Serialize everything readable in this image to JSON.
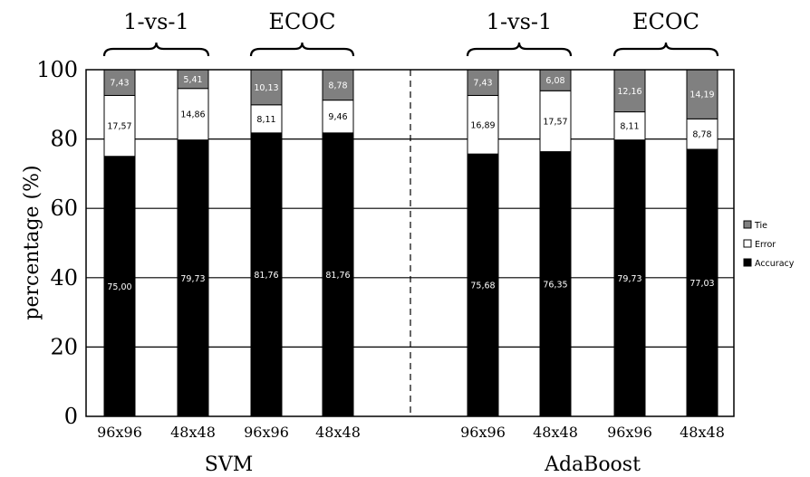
{
  "chart_data": {
    "type": "bar",
    "stacked": true,
    "ylabel": "percentage (%)",
    "ylim": [
      0,
      100
    ],
    "yticks": [
      "0",
      "20",
      "40",
      "60",
      "80",
      "100"
    ],
    "grid": true,
    "legend_position": "right",
    "categories": [
      "96x96",
      "48x48",
      "96x96",
      "48x48",
      "96x96",
      "48x48",
      "96x96",
      "48x48"
    ],
    "groups": [
      {
        "label": "SVM",
        "subgroups": [
          {
            "label": "1-vs-1",
            "bars": [
              0,
              1
            ]
          },
          {
            "label": "ECOC",
            "bars": [
              2,
              3
            ]
          }
        ]
      },
      {
        "label": "AdaBoost",
        "subgroups": [
          {
            "label": "1-vs-1",
            "bars": [
              4,
              5
            ]
          },
          {
            "label": "ECOC",
            "bars": [
              6,
              7
            ]
          }
        ]
      }
    ],
    "series": [
      {
        "name": "Accuracy",
        "color": "#000000",
        "label_color": "#ffffff",
        "values": [
          75.0,
          79.73,
          81.76,
          81.76,
          75.68,
          76.35,
          79.73,
          77.03
        ],
        "labels": [
          "75,00",
          "79,73",
          "81,76",
          "81,76",
          "75,68",
          "76,35",
          "79,73",
          "77,03"
        ]
      },
      {
        "name": "Error",
        "color": "#ffffff",
        "label_color": "#000000",
        "values": [
          17.57,
          14.86,
          8.11,
          9.46,
          16.89,
          17.57,
          8.11,
          8.78
        ],
        "labels": [
          "17,57",
          "14,86",
          "8,11",
          "9,46",
          "16,89",
          "17,57",
          "8,11",
          "8,78"
        ]
      },
      {
        "name": "Tie",
        "color": "#808080",
        "label_color": "#ffffff",
        "values": [
          7.43,
          5.41,
          10.13,
          8.78,
          7.43,
          6.08,
          12.16,
          14.19
        ],
        "labels": [
          "7,43",
          "5,41",
          "10,13",
          "8,78",
          "7,43",
          "6,08",
          "12,16",
          "14,19"
        ]
      }
    ]
  }
}
